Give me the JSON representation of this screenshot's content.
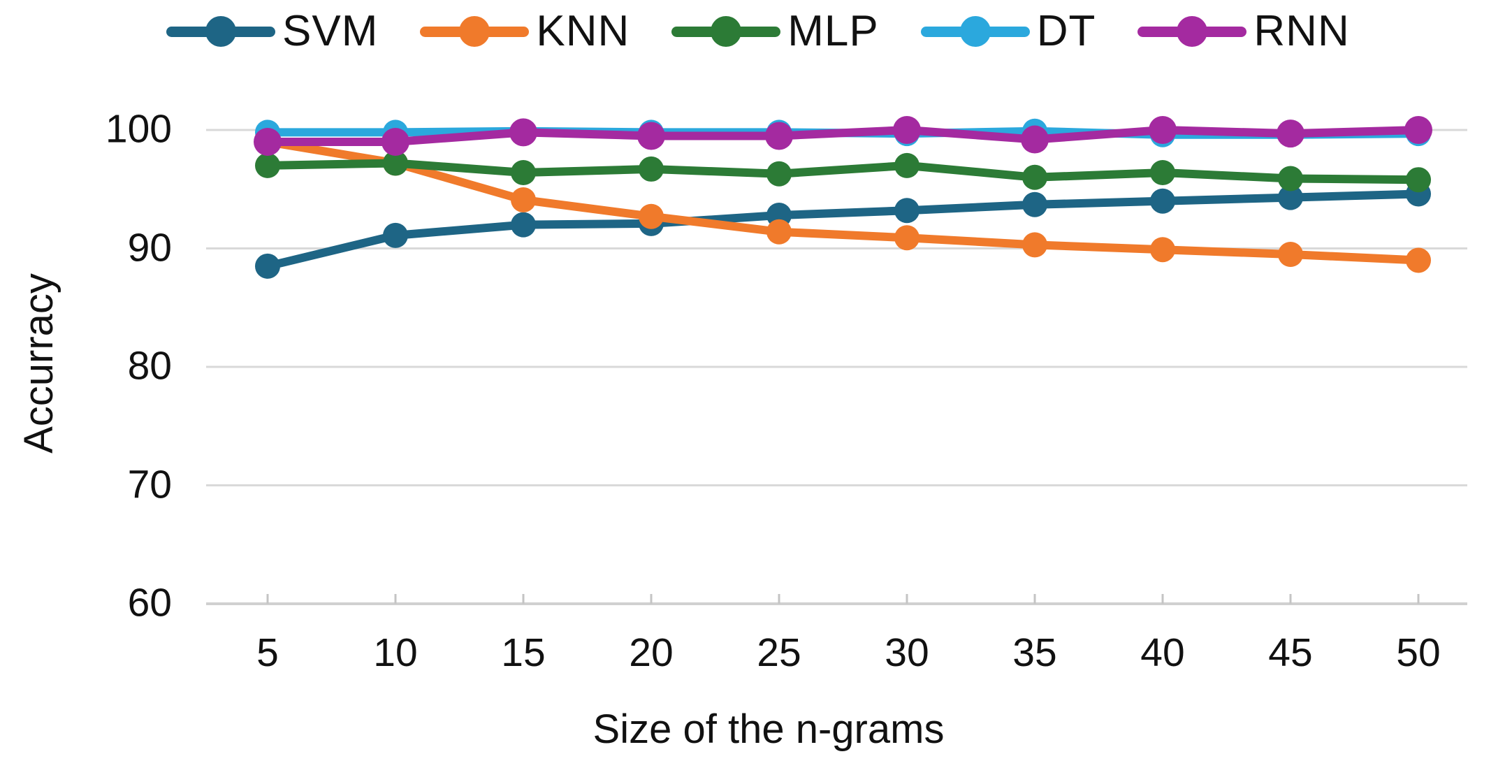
{
  "chart_data": {
    "type": "line",
    "title": "",
    "xlabel": "Size of the n-grams",
    "ylabel": "Accurracy",
    "x": [
      5,
      10,
      15,
      20,
      25,
      30,
      35,
      40,
      45,
      50
    ],
    "x_tick_labels": [
      "5",
      "10",
      "15",
      "20",
      "25",
      "30",
      "35",
      "40",
      "45",
      "50"
    ],
    "y_ticks": [
      100,
      90,
      80,
      70,
      60
    ],
    "y_tick_labels": [
      "100",
      "90",
      "80",
      "70",
      "60"
    ],
    "ylim": [
      60,
      100
    ],
    "grid": "horizontal",
    "legend_position": "top",
    "series": [
      {
        "name": "SVM",
        "color": "#1E6585",
        "values": [
          88.5,
          91.1,
          92.0,
          92.1,
          92.8,
          93.2,
          93.7,
          94.0,
          94.3,
          94.6
        ]
      },
      {
        "name": "KNN",
        "color": "#F07A2B",
        "values": [
          99.0,
          97.2,
          94.1,
          92.7,
          91.4,
          90.9,
          90.3,
          89.9,
          89.5,
          89.0
        ]
      },
      {
        "name": "MLP",
        "color": "#2C7B36",
        "values": [
          97.0,
          97.2,
          96.4,
          96.7,
          96.3,
          97.0,
          96.0,
          96.4,
          95.9,
          95.8
        ]
      },
      {
        "name": "DT",
        "color": "#2BA8DD",
        "values": [
          99.8,
          99.8,
          99.9,
          99.8,
          99.8,
          99.7,
          99.9,
          99.6,
          99.6,
          99.7
        ]
      },
      {
        "name": "RNN",
        "color": "#A42AA0",
        "values": [
          99.0,
          99.0,
          99.8,
          99.5,
          99.5,
          100.0,
          99.2,
          100.0,
          99.7,
          100.0
        ]
      }
    ]
  },
  "colors": {
    "background": "#ffffff",
    "gridline": "#d9d9d9",
    "axis_line": "#d0d0d0",
    "tick_mark": "#c4c4c4",
    "text": "#111111"
  }
}
